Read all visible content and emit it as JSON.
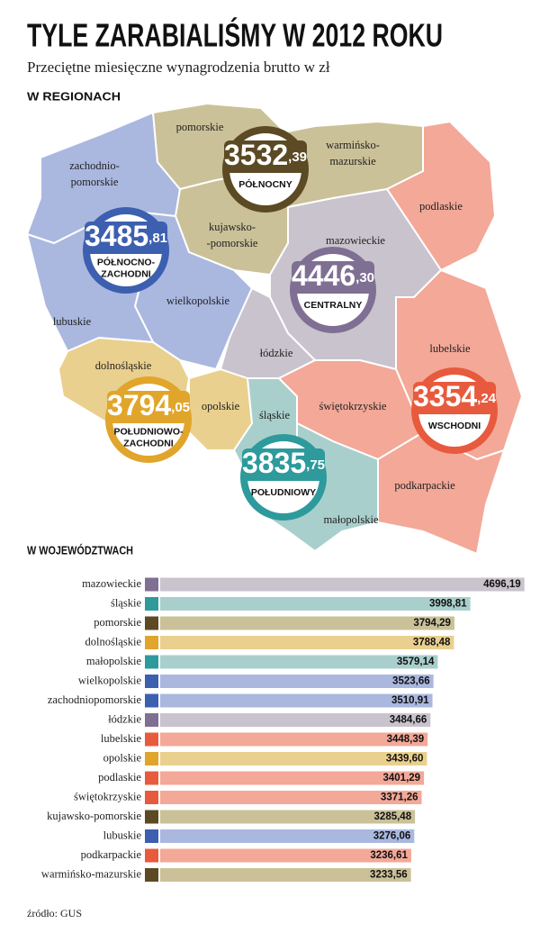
{
  "header": {
    "title": "TYLE ZARABIALIŚMY W 2012 ROKU",
    "subtitle": "Przeciętne miesięczne wynagrodzenia brutto w zł"
  },
  "map": {
    "heading": "W REGIONACH",
    "regions": [
      {
        "lines": [
          "zachodnio-",
          "pomorskie"
        ]
      },
      {
        "lines": [
          "pomorskie"
        ]
      },
      {
        "lines": [
          "warmińsko-",
          "mazurskie"
        ]
      },
      {
        "lines": [
          "podlaskie"
        ]
      },
      {
        "lines": [
          "kujawsko-",
          "-pomorskie"
        ]
      },
      {
        "lines": [
          "mazowieckie"
        ]
      },
      {
        "lines": [
          "wielkopolskie"
        ]
      },
      {
        "lines": [
          "lubuskie"
        ]
      },
      {
        "lines": [
          "lubelskie"
        ]
      },
      {
        "lines": [
          "łódzkie"
        ]
      },
      {
        "lines": [
          "dolnośląskie"
        ]
      },
      {
        "lines": [
          "opolskie"
        ]
      },
      {
        "lines": [
          "śląskie"
        ]
      },
      {
        "lines": [
          "świętokrzyskie"
        ]
      },
      {
        "lines": [
          "podkarpackie"
        ]
      },
      {
        "lines": [
          "małopolskie"
        ]
      }
    ],
    "badges": [
      {
        "integer": "3532",
        "decimal": ",39",
        "name": [
          "PÓŁNOCNY"
        ],
        "color": "#5b4a24"
      },
      {
        "integer": "3485",
        "decimal": ",81",
        "name": [
          "PÓŁNOCNO-",
          "ZACHODNI"
        ],
        "color": "#3d5fb0"
      },
      {
        "integer": "4446",
        "decimal": ",30",
        "name": [
          "CENTRALNY"
        ],
        "color": "#7f6f93"
      },
      {
        "integer": "3794",
        "decimal": ",05",
        "name": [
          "POŁUDNIOWO-",
          "ZACHODNI"
        ],
        "color": "#e0a52a"
      },
      {
        "integer": "3835",
        "decimal": ",75",
        "name": [
          "POŁUDNIOWY"
        ],
        "color": "#2e9a9c"
      },
      {
        "integer": "3354",
        "decimal": ",24",
        "name": [
          "WSCHODNI"
        ],
        "color": "#e85a3d"
      }
    ]
  },
  "chart_data": {
    "type": "hbar",
    "title": "W WOJEWÓDZTWACH",
    "categories": [
      "mazowieckie",
      "śląskie",
      "pomorskie",
      "dolnośląskie",
      "małopolskie",
      "wielkopolskie",
      "zachodniopomorskie",
      "łódzkie",
      "lubelskie",
      "opolskie",
      "podlaskie",
      "świętokrzyskie",
      "kujawsko-pomorskie",
      "lubuskie",
      "podkarpackie",
      "warmińsko-mazurskie"
    ],
    "values": [
      4696.19,
      3998.81,
      3794.29,
      3788.48,
      3579.14,
      3523.66,
      3510.91,
      3484.66,
      3448.39,
      3439.6,
      3401.29,
      3371.26,
      3285.48,
      3276.06,
      3236.61,
      3233.56
    ],
    "value_labels": [
      "4696,19",
      "3998,81",
      "3794,29",
      "3788,48",
      "3579,14",
      "3523,66",
      "3510,91",
      "3484,66",
      "3448,39",
      "3439,60",
      "3401,29",
      "3371,26",
      "3285,48",
      "3276,06",
      "3236,61",
      "3233,56"
    ],
    "colors": [
      "#c9c3cd",
      "#a9cfcc",
      "#cbc198",
      "#ead08e",
      "#a9cfcc",
      "#aab8e0",
      "#aab8e0",
      "#c9c3cd",
      "#f3a898",
      "#ead08e",
      "#f3a898",
      "#f3a898",
      "#cbc198",
      "#aab8e0",
      "#f3a898",
      "#cbc198"
    ],
    "swatch_colors": [
      "#7f6f93",
      "#2e9a9c",
      "#5b4a24",
      "#e0a52a",
      "#2e9a9c",
      "#3d5fb0",
      "#3d5fb0",
      "#7f6f93",
      "#e85a3d",
      "#e0a52a",
      "#e85a3d",
      "#e85a3d",
      "#5b4a24",
      "#3d5fb0",
      "#e85a3d",
      "#5b4a24"
    ],
    "xlim": [
      0,
      4700
    ],
    "source": "źródło: GUS"
  }
}
